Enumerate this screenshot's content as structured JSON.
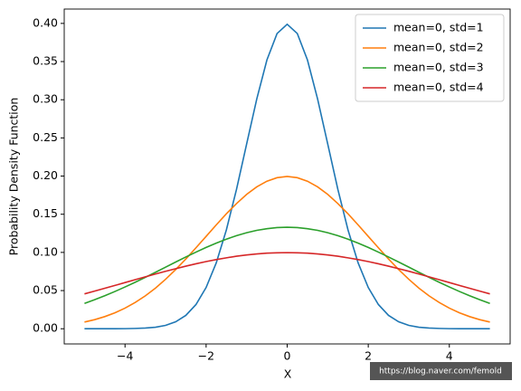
{
  "chart_data": {
    "type": "line",
    "xlabel": "X",
    "ylabel": "Probability Density Function",
    "x": [
      -5,
      -4.75,
      -4.5,
      -4.25,
      -4,
      -3.75,
      -3.5,
      -3.25,
      -3,
      -2.75,
      -2.5,
      -2.25,
      -2,
      -1.75,
      -1.5,
      -1.25,
      -1,
      -0.75,
      -0.5,
      -0.25,
      0,
      0.25,
      0.5,
      0.75,
      1,
      1.25,
      1.5,
      1.75,
      2,
      2.25,
      2.5,
      2.75,
      3,
      3.25,
      3.5,
      3.75,
      4,
      4.25,
      4.5,
      4.75,
      5
    ],
    "series": [
      {
        "name": "mean=0, std=1",
        "color": "#1f77b4",
        "values": [
          0,
          0,
          0,
          0,
          0.0001,
          0.0004,
          0.0009,
          0.002,
          0.0044,
          0.0091,
          0.0175,
          0.0317,
          0.054,
          0.0863,
          0.1295,
          0.1826,
          0.242,
          0.3011,
          0.3521,
          0.3867,
          0.3989,
          0.3867,
          0.3521,
          0.3011,
          0.242,
          0.1826,
          0.1295,
          0.0863,
          0.054,
          0.0317,
          0.0175,
          0.0091,
          0.0044,
          0.002,
          0.0009,
          0.0004,
          0.0001,
          0,
          0,
          0,
          0
        ]
      },
      {
        "name": "mean=0, std=2",
        "color": "#ff7f0e",
        "values": [
          0.0088,
          0.0119,
          0.0159,
          0.0209,
          0.027,
          0.0344,
          0.0431,
          0.0532,
          0.0648,
          0.0775,
          0.0913,
          0.1061,
          0.121,
          0.136,
          0.1506,
          0.164,
          0.176,
          0.1859,
          0.1933,
          0.1979,
          0.1995,
          0.1979,
          0.1933,
          0.1859,
          0.176,
          0.164,
          0.1506,
          0.136,
          0.121,
          0.1061,
          0.0913,
          0.0775,
          0.0648,
          0.0532,
          0.0431,
          0.0344,
          0.027,
          0.0209,
          0.0159,
          0.0119,
          0.0088
        ]
      },
      {
        "name": "mean=0, std=3",
        "color": "#2ca02c",
        "values": [
          0.0332,
          0.038,
          0.0432,
          0.0488,
          0.0547,
          0.0609,
          0.0673,
          0.0739,
          0.0807,
          0.0874,
          0.094,
          0.1004,
          0.1065,
          0.1122,
          0.1174,
          0.1219,
          0.1258,
          0.1289,
          0.1311,
          0.1325,
          0.133,
          0.1325,
          0.1311,
          0.1289,
          0.1258,
          0.1219,
          0.1174,
          0.1122,
          0.1065,
          0.1004,
          0.094,
          0.0874,
          0.0807,
          0.0739,
          0.0673,
          0.0609,
          0.0547,
          0.0488,
          0.0432,
          0.038,
          0.0332
        ]
      },
      {
        "name": "mean=0, std=4",
        "color": "#d62728",
        "values": [
          0.0457,
          0.0493,
          0.053,
          0.0567,
          0.0605,
          0.0643,
          0.068,
          0.0717,
          0.0753,
          0.0787,
          0.082,
          0.0851,
          0.088,
          0.0906,
          0.0929,
          0.095,
          0.0967,
          0.098,
          0.099,
          0.0995,
          0.0997,
          0.0995,
          0.099,
          0.098,
          0.0967,
          0.095,
          0.0929,
          0.0906,
          0.088,
          0.0851,
          0.082,
          0.0787,
          0.0753,
          0.0717,
          0.068,
          0.0643,
          0.0605,
          0.0567,
          0.053,
          0.0493,
          0.0457
        ]
      }
    ],
    "xlim": [
      -5.5,
      5.5
    ],
    "ylim": [
      -0.0199,
      0.4188
    ],
    "xticks": [
      {
        "value": -4,
        "label": "−4"
      },
      {
        "value": -2,
        "label": "−2"
      },
      0,
      2,
      4
    ],
    "yticks": [
      {
        "value": 0,
        "label": "0.00"
      },
      {
        "value": 0.05,
        "label": "0.05"
      },
      {
        "value": 0.1,
        "label": "0.10"
      },
      {
        "value": 0.15,
        "label": "0.15"
      },
      {
        "value": 0.2,
        "label": "0.20"
      },
      {
        "value": 0.25,
        "label": "0.25"
      },
      {
        "value": 0.3,
        "label": "0.30"
      },
      {
        "value": 0.35,
        "label": "0.35"
      },
      {
        "value": 0.4,
        "label": "0.40"
      }
    ],
    "legend": "upper right",
    "grid": false,
    "watermark": "https://blog.naver.com/femold"
  }
}
